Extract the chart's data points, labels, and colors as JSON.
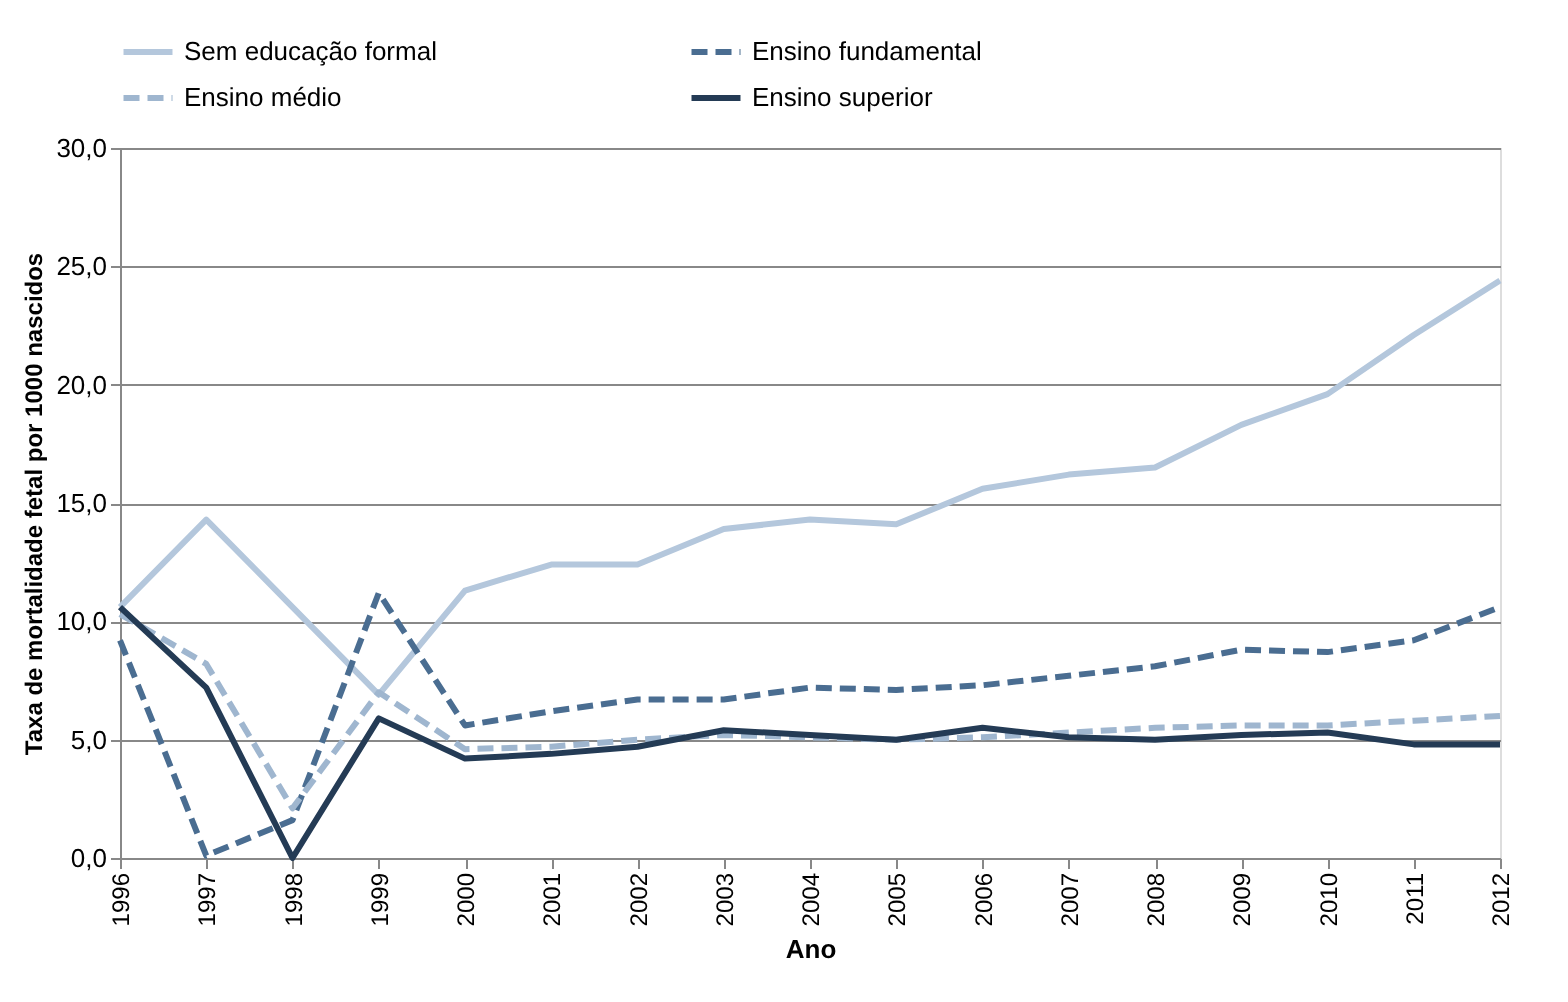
{
  "chart_data": {
    "type": "line",
    "xlabel": "Ano",
    "ylabel": "Taxa de mortalidade fetal por 1000 nascidos",
    "categories": [
      "1996",
      "1997",
      "1998",
      "1999",
      "2000",
      "2001",
      "2002",
      "2003",
      "2004",
      "2005",
      "2006",
      "2007",
      "2008",
      "2009",
      "2010",
      "2011",
      "2012"
    ],
    "series": [
      {
        "name": "Sem educação formal",
        "color": "#b4c7dc",
        "line_style": "solid",
        "values": [
          10.6,
          14.3,
          10.6,
          6.9,
          11.3,
          12.4,
          12.4,
          13.9,
          14.3,
          14.1,
          15.6,
          16.2,
          16.5,
          18.3,
          19.6,
          22.1,
          24.4
        ]
      },
      {
        "name": "Ensino fundamental",
        "color": "#4a6d91",
        "line_style": "dashed",
        "values": [
          9.2,
          0.1,
          1.6,
          11.2,
          5.6,
          6.2,
          6.7,
          6.7,
          7.2,
          7.1,
          7.3,
          7.7,
          8.1,
          8.8,
          8.7,
          9.2,
          10.6
        ]
      },
      {
        "name": "Ensino médio",
        "color": "#9fb6cf",
        "line_style": "dashed",
        "values": [
          10.3,
          8.2,
          2.1,
          7.0,
          4.6,
          4.7,
          5.0,
          5.2,
          5.1,
          5.0,
          5.1,
          5.3,
          5.5,
          5.6,
          5.6,
          5.8,
          6.0
        ]
      },
      {
        "name": "Ensino superior",
        "color": "#243b55",
        "line_style": "solid",
        "values": [
          10.6,
          7.2,
          0.0,
          5.9,
          4.2,
          4.4,
          4.7,
          5.4,
          5.2,
          5.0,
          5.5,
          5.1,
          5.0,
          5.2,
          5.3,
          4.8,
          4.8
        ]
      }
    ],
    "ylim": [
      0,
      30
    ],
    "yticks": [
      {
        "value": 0,
        "label": "0,0"
      },
      {
        "value": 5,
        "label": "5,0"
      },
      {
        "value": 10,
        "label": "10,0"
      },
      {
        "value": 15,
        "label": "15,0"
      },
      {
        "value": 20,
        "label": "20,0"
      },
      {
        "value": 25,
        "label": "25,0"
      },
      {
        "value": 30,
        "label": "30,0"
      }
    ],
    "grid": "y",
    "legend": "top",
    "marker": "none"
  }
}
